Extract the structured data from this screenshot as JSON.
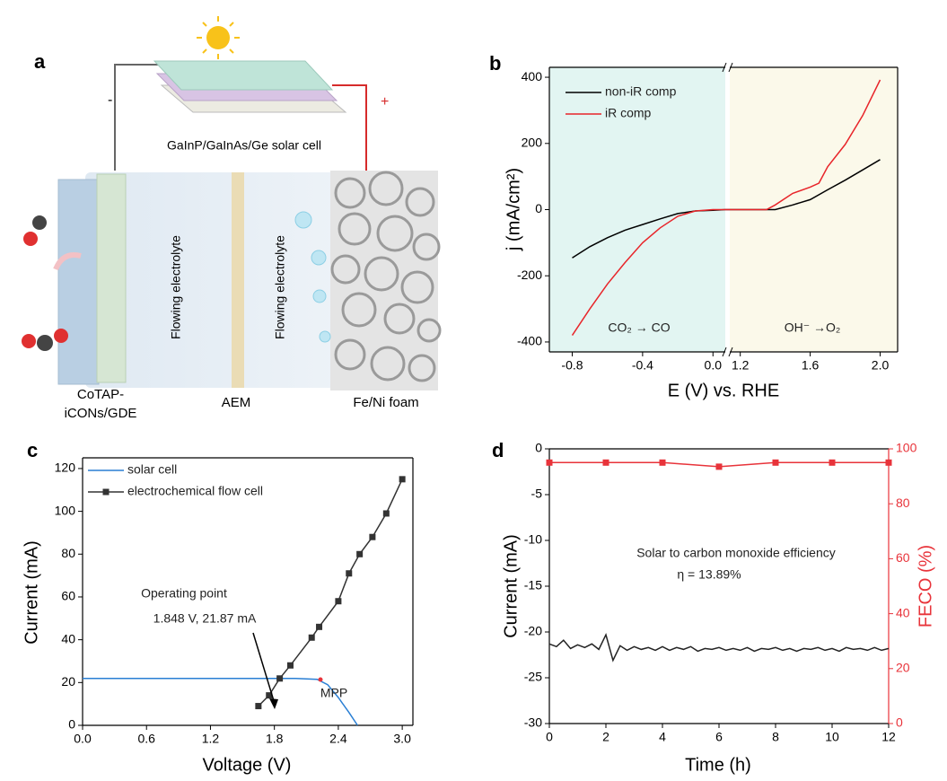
{
  "diagram": {
    "label": "a",
    "solar_cell": "GaInP/GaInAs/Ge solar cell",
    "minus": "-",
    "plus": "+",
    "electrolyte_labels": [
      "Flowing electrolyte",
      "Flowing electrolyte"
    ],
    "cathode": [
      "CoTAP-",
      "iCONs/GDE"
    ],
    "membrane": "AEM",
    "anode": "Fe/Ni foam"
  },
  "chart_data": [
    {
      "type": "line",
      "label": "b",
      "xlabel": "E (V) vs. RHE",
      "ylabel": "j (mA/cm²)",
      "xlim": [
        -0.93,
        2.1
      ],
      "xbreak": [
        0.07,
        1.14
      ],
      "xticks": [
        -0.8,
        -0.4,
        {
          "value": 0,
          "label": "0.0"
        },
        1.2,
        1.6,
        {
          "value": 2,
          "label": "2.0"
        }
      ],
      "ylim": [
        -430,
        430
      ],
      "yticks": [
        -400,
        -200,
        0,
        200,
        400
      ],
      "background_colors": [
        "#e2f5f2",
        "#fbf9ea"
      ],
      "legend": "upper left",
      "annotations": [
        {
          "text": "CO₂ → CO",
          "color": "#000000"
        },
        {
          "text": "OH⁻ →O₂",
          "color": "#000000"
        }
      ],
      "series": [
        {
          "name": "non-iR comp",
          "color": "#000000",
          "x": [
            -0.8,
            -0.7,
            -0.6,
            -0.5,
            -0.4,
            -0.3,
            -0.2,
            -0.1,
            0.0,
            0.07,
            1.14,
            1.3,
            1.4,
            1.5,
            1.6,
            1.7,
            1.8,
            1.9,
            2.0
          ],
          "values": [
            -146,
            -112,
            -85,
            -62,
            -45,
            -28,
            -12,
            -4,
            -2,
            0,
            0,
            0,
            0,
            14,
            30,
            60,
            89,
            120,
            151
          ]
        },
        {
          "name": "iR comp",
          "color": "#e8252a",
          "x": [
            -0.8,
            -0.7,
            -0.6,
            -0.5,
            -0.4,
            -0.3,
            -0.2,
            -0.1,
            0.0,
            0.07,
            1.35,
            1.4,
            1.5,
            1.6,
            1.65,
            1.7,
            1.8,
            1.9,
            2.0
          ],
          "values": [
            -380,
            -300,
            -225,
            -160,
            -100,
            -55,
            -20,
            -4,
            0,
            0,
            0,
            14,
            49,
            68,
            80,
            130,
            197,
            284,
            392
          ]
        }
      ]
    },
    {
      "type": "line",
      "label": "c",
      "xlabel": "Voltage (V)",
      "ylabel": "Current (mA)",
      "xlim": [
        0,
        3.1
      ],
      "xticks": [
        {
          "value": 0,
          "label": "0.0"
        },
        0.6,
        1.2,
        1.8,
        2.4,
        {
          "value": 3,
          "label": "3.0"
        }
      ],
      "ylim": [
        0,
        125
      ],
      "yticks": [
        0,
        20,
        40,
        60,
        80,
        100,
        120
      ],
      "legend": "upper left",
      "annotations": [
        {
          "text": "Operating point",
          "color": "#000000"
        },
        {
          "text": "1.848 V, 21.87 mA",
          "color": "#000000"
        },
        {
          "text": "MPP",
          "color": "#e8333a"
        }
      ],
      "series": [
        {
          "name": "solar cell",
          "color": "#2a7fd4",
          "x": [
            0,
            0.5,
            1.0,
            1.5,
            2.0,
            2.2,
            2.3,
            2.4,
            2.5,
            2.58
          ],
          "values": [
            21.9,
            21.9,
            21.9,
            21.9,
            21.9,
            21.5,
            19,
            13,
            6,
            0
          ]
        },
        {
          "name": "electrochemical flow cell",
          "color": "#333333",
          "marker": "square",
          "x": [
            1.65,
            1.75,
            1.85,
            1.95,
            2.15,
            2.22,
            2.4,
            2.5,
            2.6,
            2.72,
            2.85,
            3.0
          ],
          "values": [
            9,
            14,
            21.9,
            28,
            41,
            46,
            58,
            71,
            80,
            88,
            99,
            115
          ]
        }
      ]
    },
    {
      "type": "line",
      "label": "d",
      "xlabel": "Time (h)",
      "ylabel": "Current (mA)",
      "y2label": "FECO (%)",
      "xlim": [
        0,
        12
      ],
      "xticks": [
        0,
        2,
        4,
        6,
        8,
        10,
        12
      ],
      "ylim": [
        -30,
        0
      ],
      "yticks": [
        0,
        -5,
        -10,
        -15,
        -20,
        -25,
        -30
      ],
      "y2lim": [
        0,
        100
      ],
      "y2ticks": [
        0,
        20,
        40,
        60,
        80,
        100
      ],
      "y2color": "#e8333a",
      "annotations": [
        {
          "text": "Solar to carbon monoxide efficiency",
          "color": "#000000"
        },
        {
          "text": "η = 13.89%",
          "color": "#000000"
        }
      ],
      "series": [
        {
          "color": "#222222",
          "x": [
            0,
            0.25,
            0.5,
            0.75,
            1,
            1.25,
            1.5,
            1.75,
            2,
            2.25,
            2.5,
            2.75,
            3,
            3.25,
            3.5,
            3.75,
            4,
            4.25,
            4.5,
            4.75,
            5,
            5.25,
            5.5,
            5.75,
            6,
            6.25,
            6.5,
            6.75,
            7,
            7.25,
            7.5,
            7.75,
            8,
            8.25,
            8.5,
            8.75,
            9,
            9.25,
            9.5,
            9.75,
            10,
            10.25,
            10.5,
            10.75,
            11,
            11.25,
            11.5,
            11.75,
            12
          ],
          "values": [
            -21.3,
            -21.6,
            -20.9,
            -21.8,
            -21.4,
            -21.7,
            -21.3,
            -21.9,
            -20.3,
            -23.1,
            -21.5,
            -22.0,
            -21.6,
            -21.9,
            -21.7,
            -22.0,
            -21.6,
            -22.0,
            -21.7,
            -21.9,
            -21.6,
            -22.1,
            -21.8,
            -21.9,
            -21.7,
            -22.0,
            -21.8,
            -22.0,
            -21.7,
            -22.1,
            -21.8,
            -21.9,
            -21.7,
            -22.0,
            -21.8,
            -22.1,
            -21.8,
            -21.9,
            -21.7,
            -22.0,
            -21.8,
            -22.1,
            -21.7,
            -21.9,
            -21.8,
            -22.0,
            -21.7,
            -22.0,
            -21.8
          ]
        },
        {
          "color": "#e8333a",
          "axis": "y2",
          "marker": "square",
          "x": [
            0,
            2,
            4,
            6,
            8,
            10,
            12
          ],
          "values": [
            95,
            95,
            95,
            93.5,
            95,
            95,
            95
          ]
        }
      ]
    }
  ]
}
